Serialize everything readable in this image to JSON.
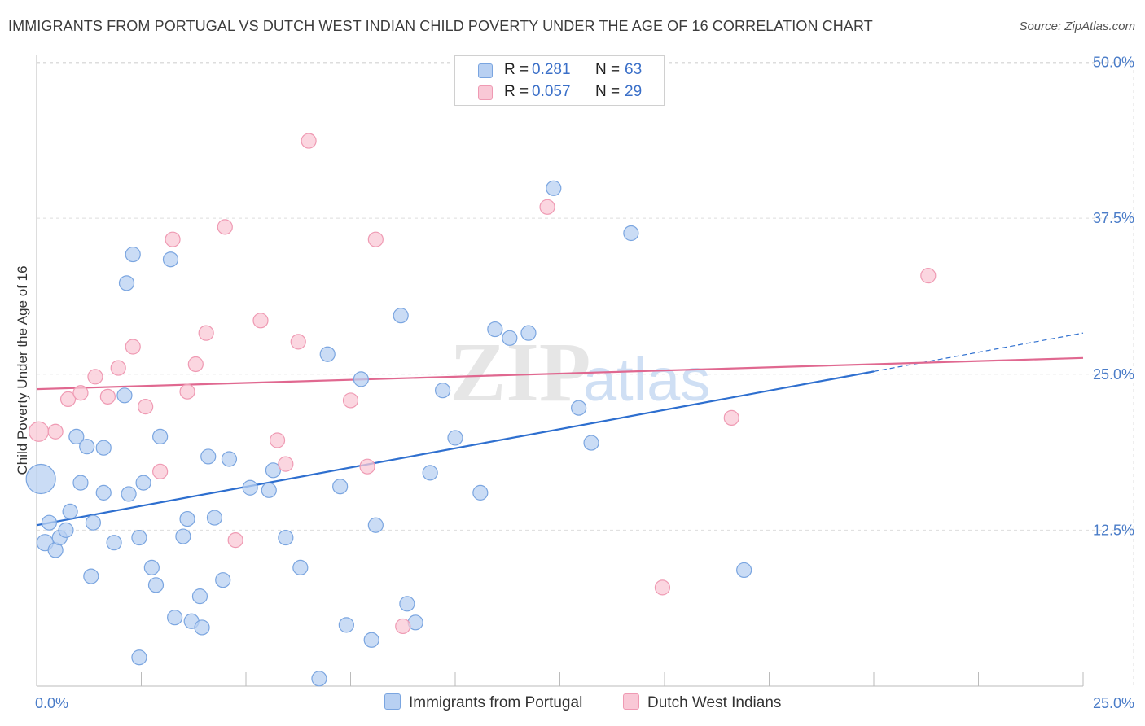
{
  "title": "IMMIGRANTS FROM PORTUGAL VS DUTCH WEST INDIAN CHILD POVERTY UNDER THE AGE OF 16 CORRELATION CHART",
  "source": "Source: ZipAtlas.com",
  "watermark": {
    "zip": "ZIP",
    "atlas": "atlas"
  },
  "legend": {
    "r_label": "R =",
    "n_label": "N =",
    "rows": [
      {
        "r": "0.281",
        "n": "63"
      },
      {
        "r": "0.057",
        "n": "29"
      }
    ]
  },
  "colors": {
    "blue_fill": "#b8d0f2",
    "blue_stroke": "#7aa5e0",
    "blue_line": "#2e6fcf",
    "pink_fill": "#f9c8d6",
    "pink_stroke": "#ef9ab3",
    "pink_line": "#e06890",
    "axis_text": "#4a7cc8",
    "grid": "#dddddd"
  },
  "chart_data": {
    "type": "scatter",
    "xlabel": "",
    "ylabel": "Child Poverty Under the Age of 16",
    "xlim": [
      0,
      25
    ],
    "ylim": [
      0,
      50
    ],
    "x_tick_labels": [
      {
        "value": 0,
        "label": "0.0%"
      },
      {
        "value": 25,
        "label": "25.0%"
      }
    ],
    "y_tick_labels": [
      {
        "value": 12.5,
        "label": "12.5%"
      },
      {
        "value": 25,
        "label": "25.0%"
      },
      {
        "value": 37.5,
        "label": "37.5%"
      },
      {
        "value": 50,
        "label": "50.0%"
      }
    ],
    "grid": true,
    "legend_position": "top-center",
    "series": [
      {
        "name": "Immigrants from Portugal",
        "color": "#b8d0f2",
        "points": [
          [
            0.1,
            16.6,
            18
          ],
          [
            0.2,
            11.5,
            10
          ],
          [
            0.3,
            13.1,
            9
          ],
          [
            0.45,
            10.9,
            9
          ],
          [
            0.55,
            11.9,
            9
          ],
          [
            0.7,
            12.5,
            9
          ],
          [
            0.8,
            14.0,
            9
          ],
          [
            0.95,
            20.0,
            9
          ],
          [
            1.05,
            16.3,
            9
          ],
          [
            1.2,
            19.2,
            9
          ],
          [
            1.35,
            13.1,
            9
          ],
          [
            1.6,
            19.1,
            9
          ],
          [
            1.3,
            8.8,
            9
          ],
          [
            1.85,
            11.5,
            9
          ],
          [
            2.1,
            23.3,
            9
          ],
          [
            2.15,
            32.3,
            9
          ],
          [
            2.2,
            15.4,
            9
          ],
          [
            2.3,
            34.6,
            9
          ],
          [
            2.45,
            11.9,
            9
          ],
          [
            2.55,
            16.3,
            9
          ],
          [
            2.75,
            9.5,
            9
          ],
          [
            2.85,
            8.1,
            9
          ],
          [
            2.95,
            20.0,
            9
          ],
          [
            3.2,
            34.2,
            9
          ],
          [
            3.3,
            5.5,
            9
          ],
          [
            3.5,
            12.0,
            9
          ],
          [
            3.6,
            13.4,
            9
          ],
          [
            3.7,
            5.2,
            9
          ],
          [
            3.9,
            7.2,
            9
          ],
          [
            3.95,
            4.7,
            9
          ],
          [
            4.1,
            18.4,
            9
          ],
          [
            4.25,
            13.5,
            9
          ],
          [
            4.45,
            8.5,
            9
          ],
          [
            4.6,
            18.2,
            9
          ],
          [
            5.1,
            15.9,
            9
          ],
          [
            5.55,
            15.7,
            9
          ],
          [
            5.65,
            17.3,
            9
          ],
          [
            5.95,
            11.9,
            9
          ],
          [
            6.3,
            9.5,
            9
          ],
          [
            6.75,
            0.6,
            9
          ],
          [
            6.95,
            26.6,
            9
          ],
          [
            7.25,
            16.0,
            9
          ],
          [
            7.4,
            4.9,
            9
          ],
          [
            7.75,
            24.6,
            9
          ],
          [
            8.0,
            3.7,
            9
          ],
          [
            8.1,
            12.9,
            9
          ],
          [
            8.7,
            29.7,
            9
          ],
          [
            8.85,
            6.6,
            9
          ],
          [
            9.05,
            5.1,
            9
          ],
          [
            9.4,
            17.1,
            9
          ],
          [
            9.7,
            23.7,
            9
          ],
          [
            10.0,
            19.9,
            9
          ],
          [
            10.6,
            15.5,
            9
          ],
          [
            10.95,
            28.6,
            9
          ],
          [
            11.3,
            27.9,
            9
          ],
          [
            11.75,
            28.3,
            9
          ],
          [
            12.35,
            39.9,
            9
          ],
          [
            12.95,
            22.3,
            9
          ],
          [
            13.25,
            19.5,
            9
          ],
          [
            14.2,
            36.3,
            9
          ],
          [
            16.9,
            9.3,
            9
          ],
          [
            2.45,
            2.3,
            9
          ],
          [
            1.6,
            15.5,
            9
          ]
        ]
      },
      {
        "name": "Dutch West Indians",
        "color": "#f9c8d6",
        "points": [
          [
            0.05,
            20.4,
            12
          ],
          [
            0.45,
            20.4,
            9
          ],
          [
            0.75,
            23.0,
            9
          ],
          [
            1.05,
            23.5,
            9
          ],
          [
            1.4,
            24.8,
            9
          ],
          [
            1.7,
            23.2,
            9
          ],
          [
            1.95,
            25.5,
            9
          ],
          [
            2.3,
            27.2,
            9
          ],
          [
            2.6,
            22.4,
            9
          ],
          [
            2.95,
            17.2,
            9
          ],
          [
            3.25,
            35.8,
            9
          ],
          [
            3.6,
            23.6,
            9
          ],
          [
            3.8,
            25.8,
            9
          ],
          [
            4.05,
            28.3,
            9
          ],
          [
            4.5,
            36.8,
            9
          ],
          [
            4.75,
            11.7,
            9
          ],
          [
            5.35,
            29.3,
            9
          ],
          [
            5.75,
            19.7,
            9
          ],
          [
            5.95,
            17.8,
            9
          ],
          [
            6.25,
            27.6,
            9
          ],
          [
            6.5,
            43.7,
            9
          ],
          [
            7.5,
            22.9,
            9
          ],
          [
            7.9,
            17.6,
            9
          ],
          [
            8.1,
            35.8,
            9
          ],
          [
            8.75,
            4.8,
            9
          ],
          [
            12.2,
            38.4,
            9
          ],
          [
            14.95,
            7.9,
            9
          ],
          [
            16.6,
            21.5,
            9
          ],
          [
            21.3,
            32.9,
            9
          ]
        ]
      }
    ],
    "trend_lines": [
      {
        "series": "Immigrants from Portugal",
        "x": [
          0,
          25
        ],
        "y": [
          12.9,
          28.3
        ],
        "solid_until_x": 20
      },
      {
        "series": "Dutch West Indians",
        "x": [
          0,
          25
        ],
        "y": [
          23.8,
          26.3
        ]
      }
    ]
  }
}
